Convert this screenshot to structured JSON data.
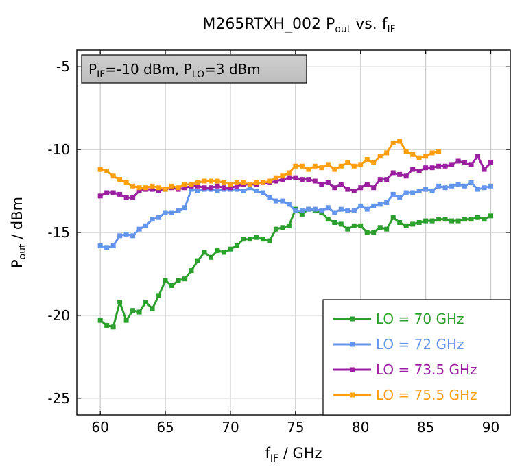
{
  "chart_data": {
    "type": "line",
    "title": {
      "main": "M265RTXH_002 P",
      "sub1": "out",
      "mid": " vs.  f",
      "sub2": "IF"
    },
    "xlabel": {
      "main": "f",
      "sub": "IF",
      "unit": "  /  GHz"
    },
    "ylabel": {
      "main": "P",
      "sub": "out",
      "unit": "  /  dBm"
    },
    "xlim": [
      58.2,
      91.5
    ],
    "ylim": [
      -26,
      -4
    ],
    "xticks": [
      60,
      65,
      70,
      75,
      80,
      85,
      90
    ],
    "yticks": [
      -25,
      -20,
      -15,
      -10,
      -5
    ],
    "grid": true,
    "legend_position": "bottom-right",
    "annotation": {
      "p1": "P",
      "p1_sub": "IF",
      "p1_val": "=-10 dBm, P",
      "p2_sub": "LO",
      "p2_val": "=3 dBm"
    },
    "x": [
      60,
      60.5,
      61,
      61.5,
      62,
      62.5,
      63,
      63.5,
      64,
      64.5,
      65,
      65.5,
      66,
      66.5,
      67,
      67.5,
      68,
      68.5,
      69,
      69.5,
      70,
      70.5,
      71,
      71.5,
      72,
      72.5,
      73,
      73.5,
      74,
      74.5,
      75,
      75.5,
      76,
      76.5,
      77,
      77.5,
      78,
      78.5,
      79,
      79.5,
      80,
      80.5,
      81,
      81.5,
      82,
      82.5,
      83,
      83.5,
      84,
      84.5,
      85,
      85.5,
      86,
      86.5,
      87,
      87.5,
      88,
      88.5,
      89,
      89.5,
      90
    ],
    "series": [
      {
        "name": "LO = 70 GHz",
        "color": "#2ca02c",
        "values": [
          -20.3,
          -20.6,
          -20.7,
          -19.2,
          -20.3,
          -19.7,
          -19.8,
          -19.2,
          -19.6,
          -18.8,
          -17.9,
          -18.2,
          -17.9,
          -17.8,
          -17.3,
          -16.7,
          -16.2,
          -16.5,
          -16.1,
          -16.2,
          -16.0,
          -15.8,
          -15.4,
          -15.4,
          -15.3,
          -15.4,
          -15.5,
          -14.8,
          -14.7,
          -14.6,
          -13.6,
          -13.9,
          -13.6,
          -13.7,
          -13.8,
          -14.2,
          -14.4,
          -14.5,
          -14.8,
          -14.6,
          -14.6,
          -15.0,
          -15.0,
          -14.7,
          -14.8,
          -14.1,
          -14.4,
          -14.6,
          -14.5,
          -14.4,
          -14.3,
          -14.3,
          -14.2,
          -14.2,
          -14.3,
          -14.3,
          -14.2,
          -14.2,
          -14.1,
          -14.2,
          -14.0
        ]
      },
      {
        "name": "LO = 72 GHz",
        "color": "#6495ed",
        "values": [
          -15.8,
          -15.9,
          -15.8,
          -15.2,
          -15.1,
          -15.2,
          -14.8,
          -14.6,
          -14.2,
          -14.1,
          -13.8,
          -13.8,
          -13.7,
          -13.5,
          -12.4,
          -12.5,
          -12.4,
          -12.4,
          -12.5,
          -12.4,
          -12.4,
          -12.4,
          -12.5,
          -12.3,
          -12.5,
          -12.6,
          -12.9,
          -13.1,
          -13.1,
          -13.3,
          -13.7,
          -13.7,
          -13.6,
          -13.6,
          -13.7,
          -13.5,
          -13.8,
          -13.6,
          -13.7,
          -13.7,
          -13.4,
          -13.6,
          -13.4,
          -13.3,
          -13.2,
          -12.7,
          -12.9,
          -12.6,
          -12.6,
          -12.5,
          -12.4,
          -12.5,
          -12.2,
          -12.3,
          -12.2,
          -12.1,
          -12.2,
          -12.0,
          -12.4,
          -12.3,
          -12.2
        ]
      },
      {
        "name": "LO = 73.5 GHz",
        "color": "#9b1fa0",
        "values": [
          -12.8,
          -12.6,
          -12.6,
          -12.7,
          -12.9,
          -12.9,
          -12.5,
          -12.4,
          -12.4,
          -12.5,
          -12.4,
          -12.3,
          -12.4,
          -12.3,
          -12.2,
          -12.2,
          -12.3,
          -12.3,
          -12.2,
          -12.3,
          -12.3,
          -12.2,
          -12.1,
          -12.1,
          -12.1,
          -12.0,
          -12.0,
          -11.9,
          -11.8,
          -11.7,
          -11.7,
          -11.8,
          -11.8,
          -11.9,
          -12.1,
          -12.0,
          -12.3,
          -12.1,
          -12.4,
          -12.5,
          -12.3,
          -12.1,
          -12.3,
          -11.8,
          -11.8,
          -11.4,
          -11.5,
          -11.6,
          -11.2,
          -11.3,
          -11.1,
          -11.1,
          -11.0,
          -11.0,
          -10.9,
          -10.7,
          -10.8,
          -10.9,
          -10.4,
          -11.2,
          -10.8
        ]
      },
      {
        "name": "LO = 75.5 GHz",
        "color": "#ff9f0f",
        "values": [
          -11.2,
          -11.3,
          -11.6,
          -11.8,
          -12.0,
          -12.2,
          -12.3,
          -12.3,
          -12.2,
          -12.3,
          -12.4,
          -12.2,
          -12.3,
          -12.1,
          -12.1,
          -12.0,
          -11.9,
          -11.9,
          -11.9,
          -12.0,
          -12.1,
          -12.0,
          -12.0,
          -12.1,
          -12.0,
          -12.0,
          -11.9,
          -11.7,
          -11.6,
          -11.4,
          -11.0,
          -11.0,
          -11.2,
          -11.0,
          -11.1,
          -10.9,
          -11.2,
          -11.0,
          -10.8,
          -11.0,
          -10.9,
          -10.6,
          -10.8,
          -10.4,
          -10.2,
          -9.6,
          -9.5,
          -10.1,
          -10.3,
          -10.5,
          -10.4,
          -10.2,
          -10.1,
          null,
          null,
          null,
          null,
          null,
          null,
          null,
          null
        ]
      }
    ]
  }
}
